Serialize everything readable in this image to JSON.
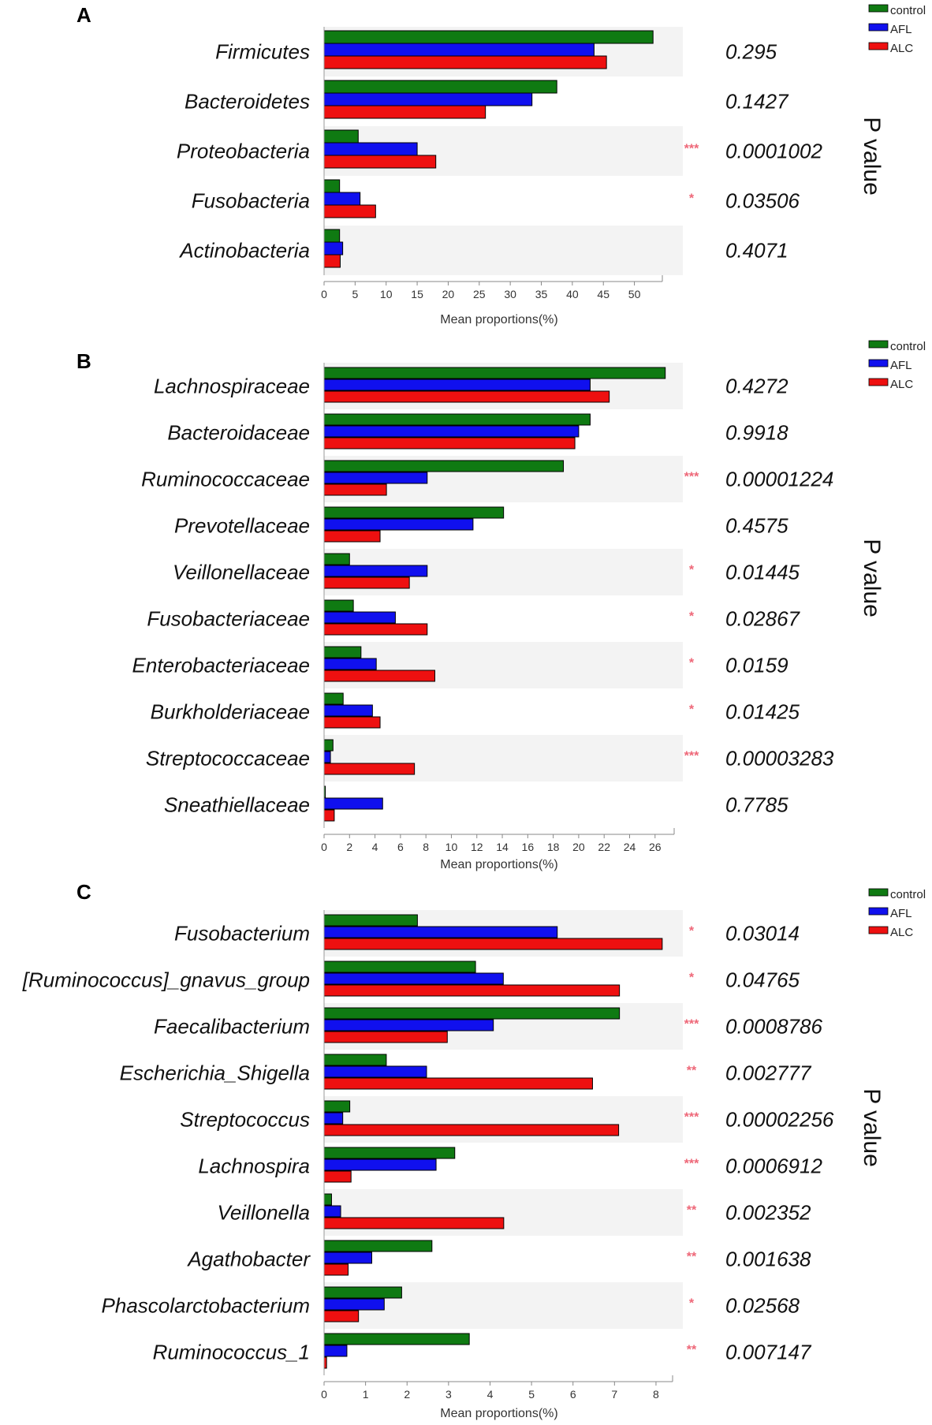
{
  "colors": {
    "control": "#0f7a12",
    "AFL": "#1010ee",
    "ALC": "#ee1010",
    "band": "#f3f3f3",
    "stars": "#ee6677"
  },
  "chart_data": [
    {
      "panel": "A",
      "type": "bar",
      "orientation": "horizontal",
      "categories": [
        "Firmicutes",
        "Bacteroidetes",
        "Proteobacteria",
        "Fusobacteria",
        "Actinobacteria"
      ],
      "series": [
        {
          "name": "control",
          "values": [
            53,
            37.5,
            5.5,
            2.5,
            2.5
          ]
        },
        {
          "name": "AFL",
          "values": [
            43.5,
            33.5,
            15,
            5.8,
            3
          ]
        },
        {
          "name": "ALC",
          "values": [
            45.5,
            26,
            18,
            8.3,
            2.6
          ]
        }
      ],
      "p_values": [
        "0.295",
        "0.1427",
        "0.0001002",
        "0.03506",
        "0.4071"
      ],
      "significance": [
        "",
        "",
        "***",
        "*",
        ""
      ],
      "xticks": [
        "0",
        "5",
        "10",
        "15",
        "20",
        "25",
        "30",
        "35",
        "40",
        "45",
        "50"
      ],
      "xlim": [
        0,
        54.5
      ],
      "xlabel": "Mean proportions(%)",
      "p_label": "P value",
      "legend": [
        "control",
        "AFL",
        "ALC"
      ]
    },
    {
      "panel": "B",
      "type": "bar",
      "orientation": "horizontal",
      "categories": [
        "Lachnospiraceae",
        "Bacteroidaceae",
        "Ruminococcaceae",
        "Prevotellaceae",
        "Veillonellaceae",
        "Fusobacteriaceae",
        "Enterobacteriaceae",
        "Burkholderiaceae",
        "Streptococcaceae",
        "Sneathiellaceae"
      ],
      "series": [
        {
          "name": "control",
          "values": [
            26.8,
            20.9,
            18.8,
            14.1,
            2.0,
            2.3,
            2.9,
            1.5,
            0.7,
            0.1
          ]
        },
        {
          "name": "AFL",
          "values": [
            20.9,
            20.0,
            8.1,
            11.7,
            8.1,
            5.6,
            4.1,
            3.8,
            0.5,
            4.6
          ]
        },
        {
          "name": "ALC",
          "values": [
            22.4,
            19.7,
            4.9,
            4.4,
            6.7,
            8.1,
            8.7,
            4.4,
            7.1,
            0.8
          ]
        }
      ],
      "p_values": [
        "0.4272",
        "0.9918",
        "0.00001224",
        "0.4575",
        "0.01445",
        "0.02867",
        "0.0159",
        "0.01425",
        "0.00003283",
        "0.7785"
      ],
      "significance": [
        "",
        "",
        "***",
        "",
        "*",
        "*",
        "*",
        "*",
        "***",
        ""
      ],
      "xticks": [
        "0",
        "2",
        "4",
        "6",
        "8",
        "10",
        "12",
        "14",
        "16",
        "18",
        "20",
        "22",
        "24",
        "26"
      ],
      "xlim": [
        0,
        27.5
      ],
      "xlabel": "Mean proportions(%)",
      "p_label": "P value",
      "legend": [
        "control",
        "AFL",
        "ALC"
      ]
    },
    {
      "panel": "C",
      "type": "bar",
      "orientation": "horizontal",
      "categories": [
        "Fusobacterium",
        "[Ruminococcus]_gnavus_group",
        "Faecalibacterium",
        "Escherichia_Shigella",
        "Streptococcus",
        "Lachnospira",
        "Veillonella",
        "Agathobacter",
        "Phascolarctobacterium",
        "Ruminococcus_1"
      ],
      "series": [
        {
          "name": "control",
          "values": [
            2.25,
            3.65,
            7.12,
            1.5,
            0.62,
            3.15,
            0.18,
            2.6,
            1.87,
            3.5
          ]
        },
        {
          "name": "AFL",
          "values": [
            5.62,
            4.32,
            4.08,
            2.47,
            0.45,
            2.7,
            0.4,
            1.15,
            1.45,
            0.55
          ]
        },
        {
          "name": "ALC",
          "values": [
            8.15,
            7.12,
            2.97,
            6.47,
            7.1,
            0.65,
            4.33,
            0.58,
            0.83,
            0.06
          ]
        }
      ],
      "p_values": [
        "0.03014",
        "0.04765",
        "0.0008786",
        "0.002777",
        "0.00002256",
        "0.0006912",
        "0.002352",
        "0.001638",
        "0.02568",
        "0.007147"
      ],
      "significance": [
        "*",
        "*",
        "***",
        "**",
        "***",
        "***",
        "**",
        "**",
        "*",
        "**"
      ],
      "xticks": [
        "0",
        "1",
        "2",
        "3",
        "4",
        "5",
        "6",
        "7",
        "8"
      ],
      "xlim": [
        0,
        8.4
      ],
      "xlabel": "Mean proportions(%)",
      "p_label": "P value",
      "legend": [
        "control",
        "AFL",
        "ALC"
      ]
    }
  ]
}
